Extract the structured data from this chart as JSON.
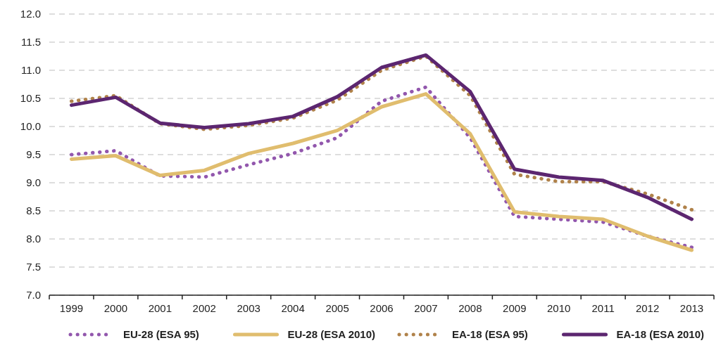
{
  "chart_data": {
    "type": "line",
    "categories": [
      "1999",
      "2000",
      "2001",
      "2002",
      "2003",
      "2004",
      "2005",
      "2006",
      "2007",
      "2008",
      "2009",
      "2010",
      "2011",
      "2012",
      "2013"
    ],
    "ylim": [
      7,
      12
    ],
    "yticks": [
      {
        "value": 7,
        "label": "7.0"
      },
      {
        "value": 7.5,
        "label": "7.5"
      },
      {
        "value": 8,
        "label": "8.0"
      },
      {
        "value": 8.5,
        "label": "8.5"
      },
      {
        "value": 9,
        "label": "9.0"
      },
      {
        "value": 9.5,
        "label": "9.5"
      },
      {
        "value": 10,
        "label": "10.0"
      },
      {
        "value": 10.5,
        "label": "10.5"
      },
      {
        "value": 11,
        "label": "11.0"
      },
      {
        "value": 11.5,
        "label": "11.5"
      },
      {
        "value": 12,
        "label": "12.0"
      }
    ],
    "grid": "y",
    "legend": "bottom",
    "marker": "none",
    "series": [
      {
        "name": "EU-28 (ESA 95)",
        "color": "#9257ad",
        "line_style": "dotted",
        "values": [
          9.5,
          9.57,
          9.12,
          9.1,
          9.32,
          9.52,
          9.8,
          10.45,
          10.7,
          9.8,
          8.4,
          8.35,
          8.3,
          8.05,
          7.85
        ]
      },
      {
        "name": "EU-28 (ESA 2010)",
        "color": "#e0bd6e",
        "line_style": "solid",
        "values": [
          9.42,
          9.48,
          9.13,
          9.22,
          9.52,
          9.7,
          9.93,
          10.35,
          10.58,
          9.87,
          8.48,
          8.4,
          8.35,
          8.05,
          7.8
        ]
      },
      {
        "name": "EA-18 (ESA 95)",
        "color": "#b0824a",
        "line_style": "dotted",
        "values": [
          10.45,
          10.55,
          10.05,
          9.95,
          10.02,
          10.15,
          10.47,
          11.0,
          11.25,
          10.55,
          9.15,
          9.02,
          9.02,
          8.8,
          8.52
        ]
      },
      {
        "name": "EA-18 (ESA 2010)",
        "color": "#5c2670",
        "line_style": "solid",
        "values": [
          10.38,
          10.52,
          10.06,
          9.98,
          10.05,
          10.18,
          10.53,
          11.05,
          11.27,
          10.62,
          9.24,
          9.1,
          9.04,
          8.74,
          8.35
        ]
      }
    ]
  }
}
